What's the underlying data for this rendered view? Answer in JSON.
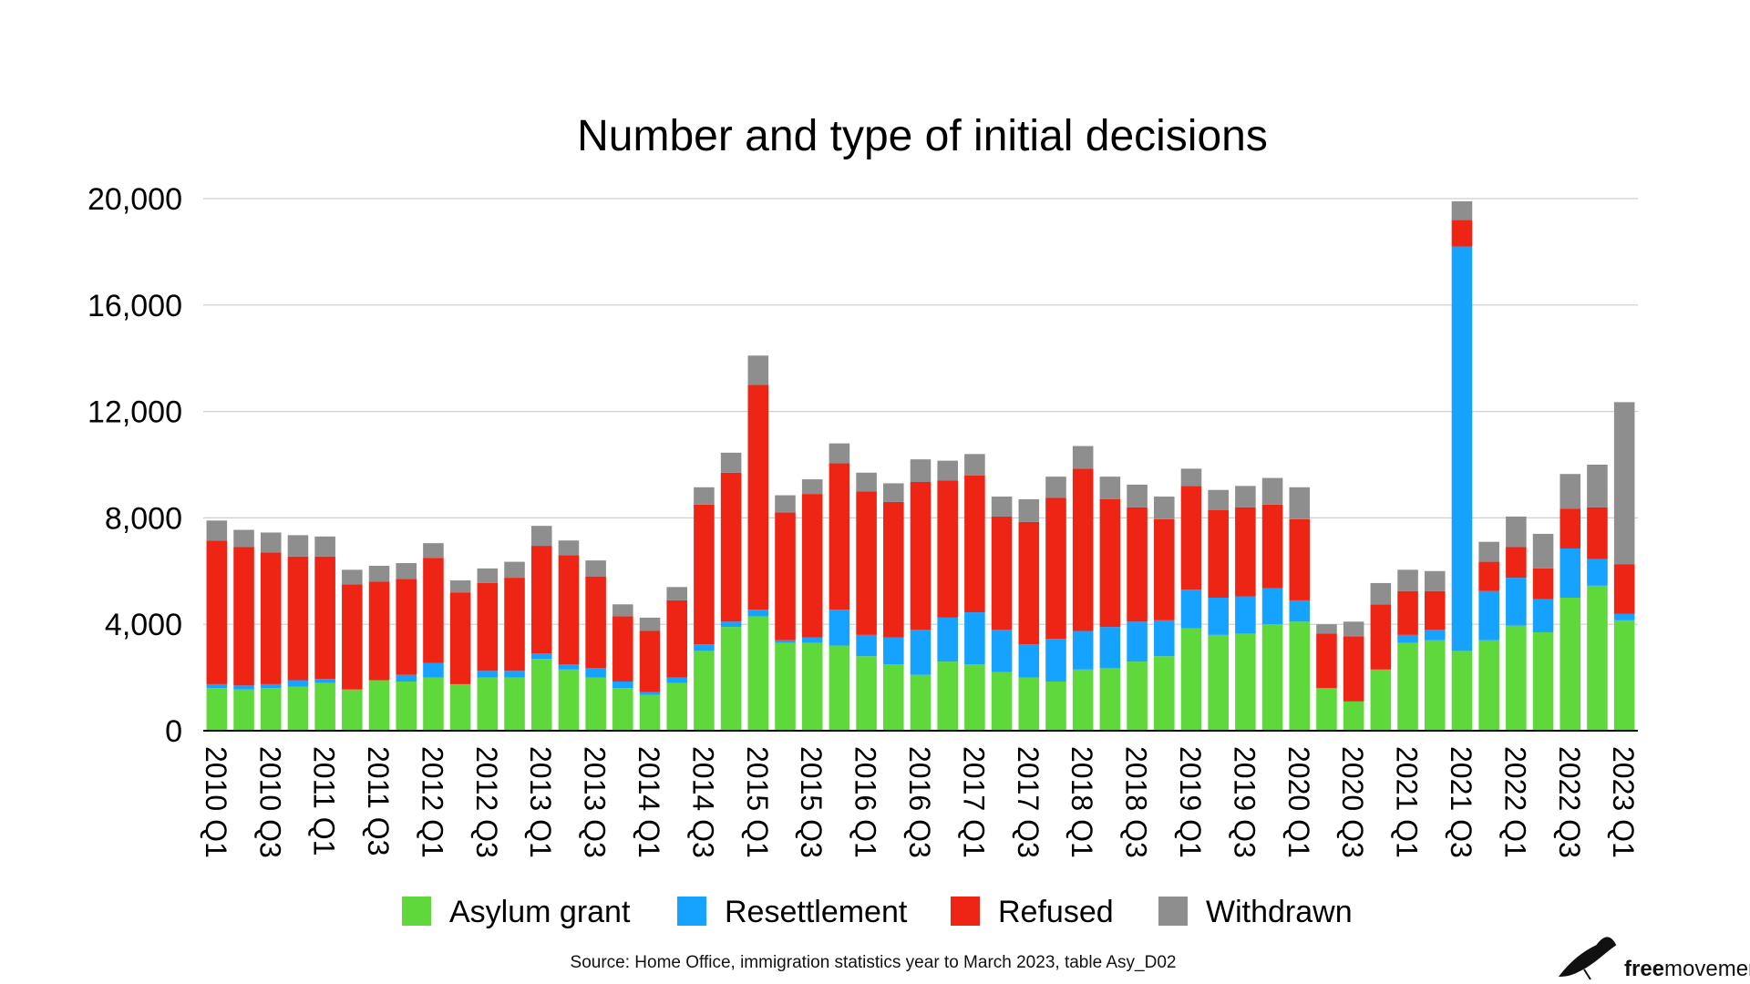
{
  "chart_data": {
    "type": "bar",
    "stacked": true,
    "title": "Number and type of initial decisions",
    "source": "Source: Home Office, immigration statistics year to March 2023, table Asy_D02",
    "ylim": [
      0,
      20000
    ],
    "yticks": [
      0,
      4000,
      8000,
      12000,
      16000,
      20000
    ],
    "ytick_labels": [
      "0",
      "4,000",
      "8,000",
      "12,000",
      "16,000",
      "20,000"
    ],
    "grid": true,
    "legend_position": "bottom",
    "categories": [
      "2010 Q1",
      "2010 Q2",
      "2010 Q3",
      "2010 Q4",
      "2011 Q1",
      "2011 Q2",
      "2011 Q3",
      "2011 Q4",
      "2012 Q1",
      "2012 Q2",
      "2012 Q3",
      "2012 Q4",
      "2013 Q1",
      "2013 Q2",
      "2013 Q3",
      "2013 Q4",
      "2014 Q1",
      "2014 Q2",
      "2014 Q3",
      "2014 Q4",
      "2015 Q1",
      "2015 Q2",
      "2015 Q3",
      "2015 Q4",
      "2016 Q1",
      "2016 Q2",
      "2016 Q3",
      "2016 Q4",
      "2017 Q1",
      "2017 Q2",
      "2017 Q3",
      "2017 Q4",
      "2018 Q1",
      "2018 Q2",
      "2018 Q3",
      "2018 Q4",
      "2019 Q1",
      "2019 Q2",
      "2019 Q3",
      "2019 Q4",
      "2020 Q1",
      "2020 Q2",
      "2020 Q3",
      "2020 Q4",
      "2021 Q1",
      "2021 Q2",
      "2021 Q3",
      "2021 Q4",
      "2022 Q1",
      "2022 Q2",
      "2022 Q3",
      "2022 Q4",
      "2023 Q1"
    ],
    "tick_labels": [
      "2010 Q1",
      "2010 Q3",
      "2011 Q1",
      "2011 Q3",
      "2012 Q1",
      "2012 Q3",
      "2013 Q1",
      "2013 Q3",
      "2014 Q1",
      "2014 Q3",
      "2015 Q1",
      "2015 Q3",
      "2016 Q1",
      "2016 Q3",
      "2017 Q1",
      "2017 Q3",
      "2018 Q1",
      "2018 Q3",
      "2019 Q1",
      "2019 Q3",
      "2020 Q1",
      "2020 Q3",
      "2021 Q1",
      "2021 Q3",
      "2022 Q1",
      "2022 Q3",
      "2023 Q1"
    ],
    "series": [
      {
        "name": "Asylum grant",
        "color": "#5ed83a",
        "values": [
          1600,
          1550,
          1600,
          1650,
          1800,
          1550,
          1900,
          1850,
          2000,
          1750,
          2000,
          2000,
          2700,
          2300,
          2000,
          1600,
          1350,
          1800,
          3000,
          3900,
          4300,
          3300,
          3300,
          3200,
          2800,
          2500,
          2100,
          2600,
          2500,
          2200,
          2000,
          1850,
          2300,
          2350,
          2600,
          2800,
          3850,
          3600,
          3650,
          4000,
          4100,
          1600,
          1100,
          2300,
          3300,
          3400,
          3000,
          3400,
          3950,
          3700,
          5000,
          5450,
          4150
        ]
      },
      {
        "name": "Resettlement",
        "color": "#16a2ff",
        "values": [
          150,
          150,
          150,
          250,
          150,
          0,
          0,
          250,
          550,
          0,
          250,
          250,
          200,
          200,
          350,
          250,
          100,
          200,
          250,
          200,
          250,
          100,
          200,
          1350,
          800,
          1000,
          1700,
          1650,
          1950,
          1600,
          1250,
          1600,
          1450,
          1550,
          1500,
          1350,
          1450,
          1400,
          1400,
          1350,
          800,
          0,
          0,
          0,
          300,
          400,
          15200,
          1850,
          1800,
          1250,
          1850,
          1000,
          250
        ]
      },
      {
        "name": "Refused",
        "color": "#ee2515",
        "values": [
          5400,
          5200,
          4950,
          4650,
          4600,
          3950,
          3700,
          3600,
          3950,
          3450,
          3300,
          3500,
          4050,
          4100,
          3450,
          2450,
          2300,
          2900,
          5250,
          5600,
          8450,
          4800,
          5400,
          5500,
          5400,
          5100,
          5550,
          5150,
          5150,
          4250,
          4600,
          5300,
          6100,
          4800,
          4300,
          3800,
          3900,
          3300,
          3350,
          3150,
          3050,
          2050,
          2450,
          2450,
          1650,
          1450,
          1000,
          1100,
          1150,
          1150,
          1500,
          1950,
          1850
        ]
      },
      {
        "name": "Withdrawn",
        "color": "#8e8e8e",
        "values": [
          750,
          650,
          750,
          800,
          750,
          550,
          600,
          600,
          550,
          450,
          550,
          600,
          750,
          550,
          600,
          450,
          500,
          500,
          650,
          750,
          1100,
          650,
          550,
          750,
          700,
          700,
          850,
          750,
          800,
          750,
          850,
          800,
          850,
          850,
          850,
          850,
          650,
          750,
          800,
          1000,
          1200,
          350,
          550,
          800,
          800,
          750,
          700,
          750,
          1150,
          1300,
          1300,
          1600,
          6100
        ]
      }
    ]
  },
  "logo": {
    "part1": "free",
    "part2": "movement"
  }
}
